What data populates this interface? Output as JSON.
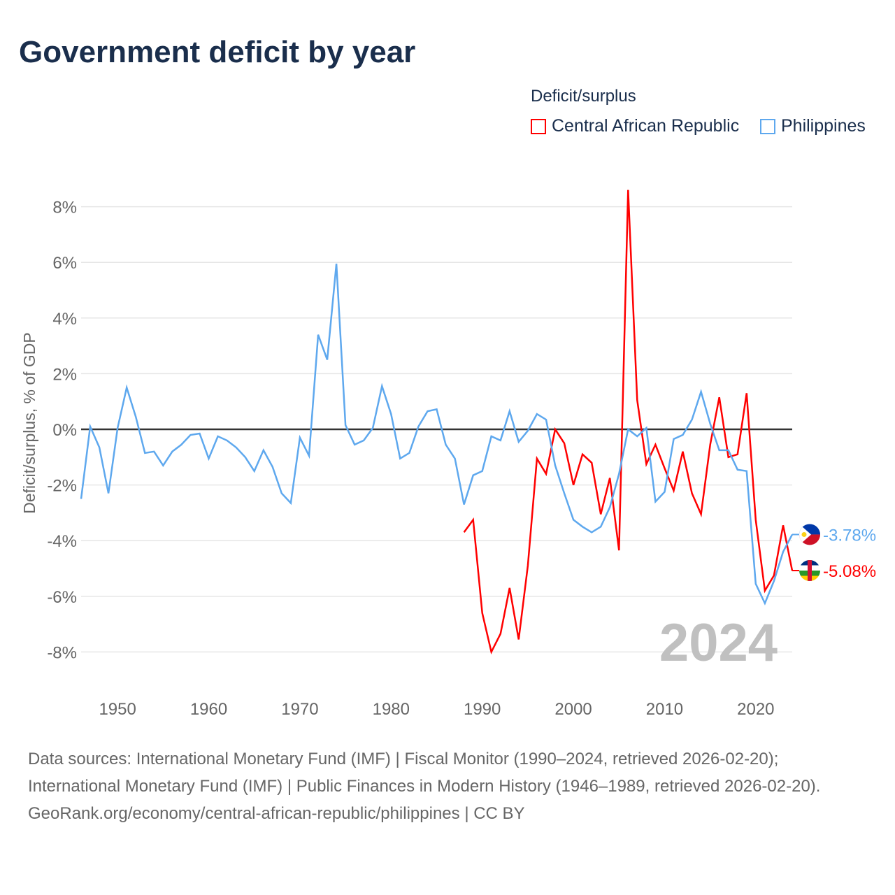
{
  "title": "Government deficit by year",
  "legend": {
    "title": "Deficit/surplus",
    "items": [
      "Central African Republic",
      "Philippines"
    ]
  },
  "footer": {
    "sources": "Data sources: International Monetary Fund (IMF) | Fiscal Monitor (1990–2024, retrieved 2026-02-20); International Monetary Fund (IMF) | Public Finances in Modern History (1946–1989, retrieved 2026-02-20).",
    "link": "GeoRank.org/economy/central-african-republic/philippines | CC BY"
  },
  "chart_data": {
    "type": "line",
    "title": "Government deficit by year",
    "ylabel": "Deficit/surplus, % of GDP",
    "xlabel": "",
    "xlim": [
      1946,
      2024
    ],
    "ylim": [
      -9,
      9
    ],
    "yticks": [
      -8,
      -6,
      -4,
      -2,
      0,
      2,
      4,
      6,
      8
    ],
    "ytick_labels": [
      "-8%",
      "-6%",
      "-4%",
      "-2%",
      "0%",
      "2%",
      "4%",
      "6%",
      "8%"
    ],
    "xticks": [
      1950,
      1960,
      1970,
      1980,
      1990,
      2000,
      2010,
      2020
    ],
    "xtick_labels": [
      "1950",
      "1960",
      "1970",
      "1980",
      "1990",
      "2000",
      "2010",
      "2020"
    ],
    "grid": true,
    "legend_position": "top-right",
    "year_watermark": "2024",
    "series": [
      {
        "name": "Central African Republic",
        "color": "#ff0000",
        "end_label": "-5.08%",
        "start_year": 1988,
        "values": [
          -3.7,
          -3.25,
          -6.6,
          -8.0,
          -7.35,
          -5.7,
          -7.55,
          -4.9,
          -1.05,
          -1.6,
          0.0,
          -0.5,
          -2.0,
          -0.9,
          -1.2,
          -3.05,
          -1.75,
          -4.35,
          8.6,
          1.05,
          -1.25,
          -0.55,
          -1.4,
          -2.2,
          -0.8,
          -2.3,
          -3.05,
          -0.55,
          1.15,
          -1.0,
          -0.9,
          1.3,
          -3.25,
          -5.8,
          -5.25,
          -3.45,
          -5.08
        ]
      },
      {
        "name": "Philippines",
        "color": "#5ea8ee",
        "end_label": "-3.78%",
        "start_year": 1946,
        "values": [
          -2.5,
          0.1,
          -0.65,
          -2.3,
          0.05,
          1.5,
          0.45,
          -0.85,
          -0.8,
          -1.3,
          -0.8,
          -0.55,
          -0.2,
          -0.15,
          -1.05,
          -0.25,
          -0.4,
          -0.65,
          -1.0,
          -1.5,
          -0.75,
          -1.35,
          -2.3,
          -2.65,
          -0.3,
          -0.95,
          3.4,
          2.5,
          5.95,
          0.15,
          -0.55,
          -0.4,
          0.05,
          1.55,
          0.55,
          -1.05,
          -0.85,
          0.1,
          0.65,
          0.72,
          -0.55,
          -1.05,
          -2.7,
          -1.65,
          -1.5,
          -0.25,
          -0.4,
          0.65,
          -0.45,
          -0.05,
          0.55,
          0.35,
          -1.3,
          -2.3,
          -3.25,
          -3.5,
          -3.7,
          -3.5,
          -2.8,
          -1.6,
          0.0,
          -0.25,
          0.05,
          -2.6,
          -2.25,
          -0.35,
          -0.2,
          0.35,
          1.35,
          0.2,
          -0.75,
          -0.75,
          -1.45,
          -1.5,
          -5.55,
          -6.25,
          -5.45,
          -4.4,
          -3.78
        ]
      }
    ]
  }
}
